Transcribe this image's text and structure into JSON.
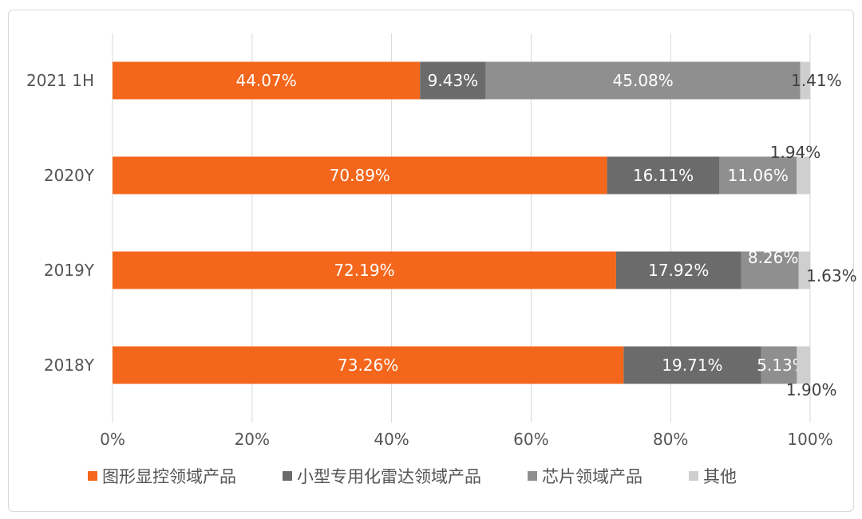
{
  "chart_data": {
    "type": "bar",
    "orientation": "horizontal",
    "stacked": "percent",
    "categories": [
      "2021 1H",
      "2020Y",
      "2019Y",
      "2018Y"
    ],
    "series": [
      {
        "name": "图形显控领域产品",
        "color": "#F4661B",
        "values": [
          44.07,
          70.89,
          72.19,
          73.26
        ],
        "labels": [
          "44.07%",
          "70.89%",
          "72.19%",
          "73.26%"
        ]
      },
      {
        "name": "小型专用化雷达领域产品",
        "color": "#6b6b6b",
        "values": [
          9.43,
          16.11,
          17.92,
          19.71
        ],
        "labels": [
          "9.43%",
          "16.11%",
          "17.92%",
          "19.71%"
        ]
      },
      {
        "name": "芯片领域产品",
        "color": "#8f8f8f",
        "values": [
          45.08,
          11.06,
          8.26,
          5.13
        ],
        "labels": [
          "45.08%",
          "11.06%",
          "8.26%",
          "5.13%"
        ]
      },
      {
        "name": "其他",
        "color": "#cfcfcf",
        "values": [
          1.41,
          1.94,
          1.63,
          1.9
        ],
        "labels": [
          "1.41%",
          "1.94%",
          "1.63%",
          "1.90%"
        ]
      }
    ],
    "xlim": [
      0,
      100
    ],
    "xticks": [
      "0%",
      "20%",
      "40%",
      "60%",
      "80%",
      "100%"
    ],
    "grid": "vertical",
    "legend": "bottom"
  }
}
